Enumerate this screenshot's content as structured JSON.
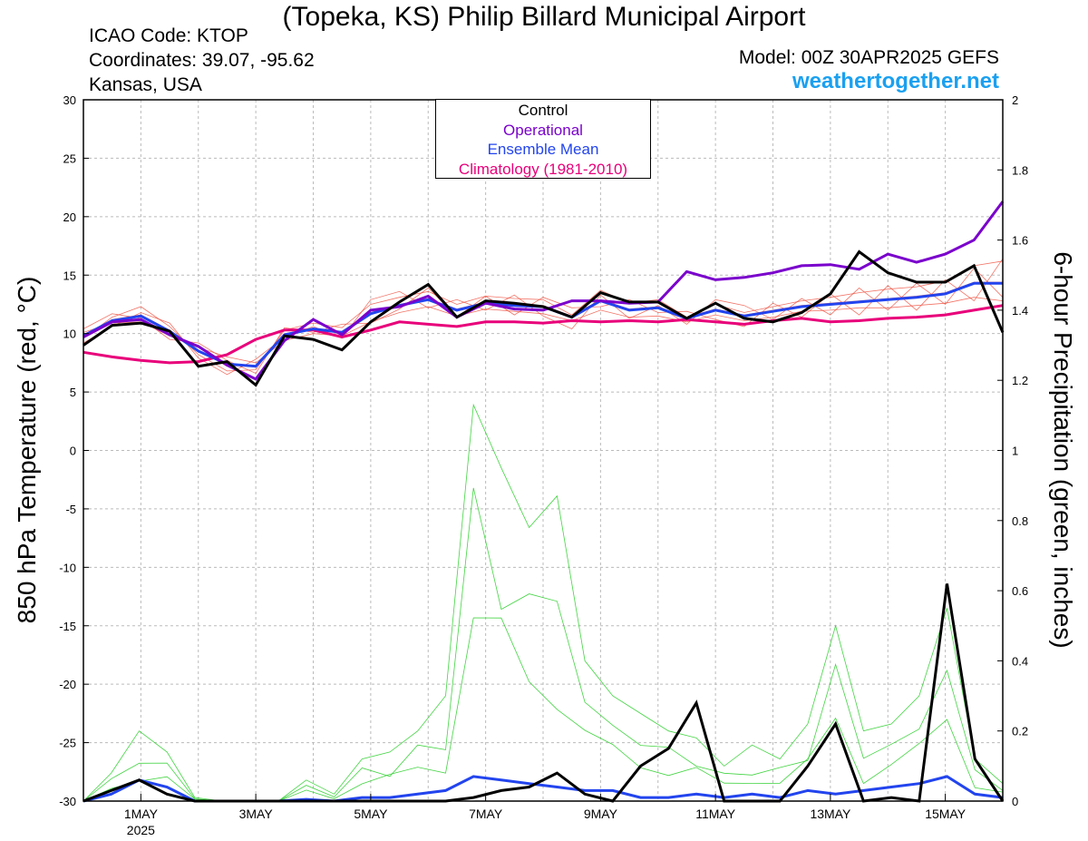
{
  "header": {
    "title": "(Topeka, KS) Philip Billard Municipal Airport",
    "icao": "ICAO Code: KTOP",
    "coordinates": "Coordinates: 39.07, -95.62",
    "location": "Kansas, USA",
    "model": "Model: 00Z 30APR2025 GEFS",
    "site": "weathertogether.net"
  },
  "colors": {
    "control": "#000000",
    "operational": "#7a00cc",
    "ensemble_mean": "#2244ee",
    "climatology": "#e8007a",
    "members_temp": "#ee4433",
    "members_precip": "#22cc22",
    "site": "#1aa0f0"
  },
  "chart_data": {
    "type": "line",
    "xlabel": "",
    "ylabel_left": "850 hPa Temperature (red, °C)",
    "ylabel_right": "6-hour Precipitation (green, inches)",
    "x_ticks": [
      "1MAY",
      "3MAY",
      "5MAY",
      "7MAY",
      "9MAY",
      "11MAY",
      "13MAY",
      "15MAY"
    ],
    "x_year_label": "2025",
    "xlim_days": [
      0,
      16
    ],
    "ylim_left": [
      -30,
      30
    ],
    "yticks_left": [
      30,
      25,
      20,
      15,
      10,
      5,
      0,
      -5,
      -10,
      -15,
      -20,
      -25,
      -30
    ],
    "ylim_right": [
      0,
      2
    ],
    "yticks_right": [
      "2",
      "1.8",
      "1.6",
      "1.4",
      "1.2",
      "1",
      "0.8",
      "0.6",
      "0.4",
      "0.2",
      "0"
    ],
    "grid": true,
    "legend": [
      "Control",
      "Operational",
      "Ensemble Mean",
      "Climatology (1981-2010)"
    ],
    "legend_placement": "top-center",
    "temperature": {
      "climatology": [
        8.4,
        8.0,
        7.7,
        7.5,
        7.6,
        8.2,
        9.5,
        10.3,
        10.3,
        9.7,
        10.3,
        11.0,
        10.8,
        10.6,
        11.0,
        11.0,
        10.9,
        11.1,
        11.0,
        11.1,
        11.0,
        11.2,
        11.0,
        10.8,
        11.1,
        11.3,
        11.0,
        11.1,
        11.3,
        11.4,
        11.6,
        12.0,
        12.4
      ],
      "control": [
        9.0,
        10.7,
        10.9,
        10.2,
        7.2,
        7.6,
        5.6,
        9.8,
        9.5,
        8.6,
        11.0,
        12.7,
        14.2,
        11.4,
        12.8,
        12.6,
        12.3,
        11.4,
        13.5,
        12.7,
        12.7,
        11.3,
        12.6,
        11.3,
        11.0,
        11.8,
        13.4,
        17.0,
        15.2,
        14.4,
        14.4,
        15.8,
        10.1
      ],
      "operational": [
        9.7,
        11.0,
        11.2,
        9.9,
        8.9,
        7.3,
        6.1,
        9.4,
        11.2,
        9.9,
        12.0,
        12.3,
        13.2,
        11.4,
        12.6,
        12.1,
        12.0,
        12.8,
        12.8,
        12.6,
        12.7,
        15.3,
        14.6,
        14.8,
        15.2,
        15.8,
        15.9,
        15.5,
        16.8,
        16.1,
        16.8,
        18.0,
        21.3
      ],
      "ensemble_mean": [
        9.8,
        11.1,
        11.5,
        10.2,
        8.5,
        7.4,
        7.2,
        9.9,
        10.4,
        10.1,
        11.7,
        12.4,
        12.9,
        12.0,
        12.6,
        12.4,
        12.3,
        11.4,
        12.8,
        12.0,
        12.2,
        11.3,
        12.0,
        11.5,
        11.9,
        12.3,
        12.5,
        12.7,
        12.9,
        13.1,
        13.4,
        14.3,
        14.3
      ],
      "members": [
        [
          9.6,
          11.4,
          12.3,
          10.6,
          8.2,
          6.8,
          6.9,
          10.3,
          10.9,
          10.5,
          12.5,
          13.1,
          13.6,
          12.5,
          13.2,
          13.0,
          12.9,
          11.6,
          13.7,
          12.6,
          12.9,
          11.4,
          12.5,
          11.8,
          12.3,
          12.8,
          13.1,
          13.5,
          13.8,
          14.0,
          14.5,
          15.8,
          16.2
        ],
        [
          10.1,
          10.9,
          11.0,
          9.8,
          8.8,
          8.0,
          7.5,
          9.4,
          10.0,
          9.8,
          11.0,
          11.8,
          12.3,
          11.5,
          12.1,
          11.9,
          11.7,
          11.1,
          12.0,
          11.4,
          11.5,
          11.0,
          11.6,
          11.1,
          11.4,
          11.9,
          12.0,
          12.2,
          12.2,
          12.4,
          12.6,
          13.1,
          12.8
        ],
        [
          9.2,
          10.6,
          11.8,
          10.9,
          7.9,
          6.5,
          7.8,
          9.7,
          10.6,
          9.6,
          12.9,
          13.6,
          12.2,
          12.9,
          12.0,
          13.3,
          11.5,
          10.4,
          13.3,
          11.3,
          12.4,
          10.8,
          12.9,
          12.4,
          11.2,
          13.0,
          11.6,
          13.9,
          12.0,
          14.3,
          12.5,
          15.6,
          13.1
        ],
        [
          10.4,
          11.7,
          11.3,
          9.5,
          9.2,
          7.7,
          6.6,
          10.5,
          10.1,
          10.8,
          10.9,
          12.1,
          13.9,
          11.4,
          13.2,
          11.6,
          13.1,
          12.2,
          12.3,
          12.9,
          11.8,
          11.9,
          11.2,
          10.6,
          12.6,
          11.4,
          13.4,
          11.6,
          14.1,
          12.0,
          14.6,
          12.8,
          16.4
        ],
        [
          9.9,
          11.2,
          11.6,
          10.3,
          8.6,
          7.2,
          7.3,
          10.0,
          10.4,
          10.2,
          11.8,
          12.5,
          13.0,
          12.1,
          12.7,
          12.5,
          12.4,
          11.5,
          12.9,
          12.1,
          12.3,
          11.4,
          12.1,
          11.6,
          12.0,
          12.4,
          12.6,
          12.8,
          13.0,
          13.2,
          13.5,
          14.4,
          14.4
        ]
      ]
    },
    "precipitation": {
      "control": [
        0.0,
        0.03,
        0.06,
        0.02,
        0.0,
        0.0,
        0.0,
        0.0,
        0.0,
        0.0,
        0.0,
        0.0,
        0.0,
        0.0,
        0.01,
        0.03,
        0.04,
        0.08,
        0.02,
        0.0,
        0.1,
        0.15,
        0.28,
        0.0,
        0.0,
        0.0,
        0.1,
        0.22,
        0.0,
        0.01,
        0.0,
        0.62,
        0.12,
        0.0
      ],
      "ensemble_mean": [
        0.0,
        0.02,
        0.06,
        0.04,
        0.0,
        0.0,
        0.0,
        0.0,
        0.005,
        0.0,
        0.01,
        0.01,
        0.02,
        0.03,
        0.07,
        0.06,
        0.05,
        0.04,
        0.03,
        0.03,
        0.01,
        0.01,
        0.02,
        0.01,
        0.02,
        0.01,
        0.03,
        0.02,
        0.03,
        0.04,
        0.05,
        0.07,
        0.02,
        0.01
      ],
      "member_max": [
        0.0,
        0.08,
        0.2,
        0.14,
        0.01,
        0.0,
        0.0,
        0.0,
        0.06,
        0.02,
        0.12,
        0.14,
        0.2,
        0.3,
        1.13,
        0.95,
        0.78,
        0.87,
        0.4,
        0.3,
        0.25,
        0.2,
        0.18,
        0.1,
        0.16,
        0.12,
        0.22,
        0.5,
        0.2,
        0.22,
        0.3,
        0.55,
        0.12,
        0.05
      ]
    }
  }
}
